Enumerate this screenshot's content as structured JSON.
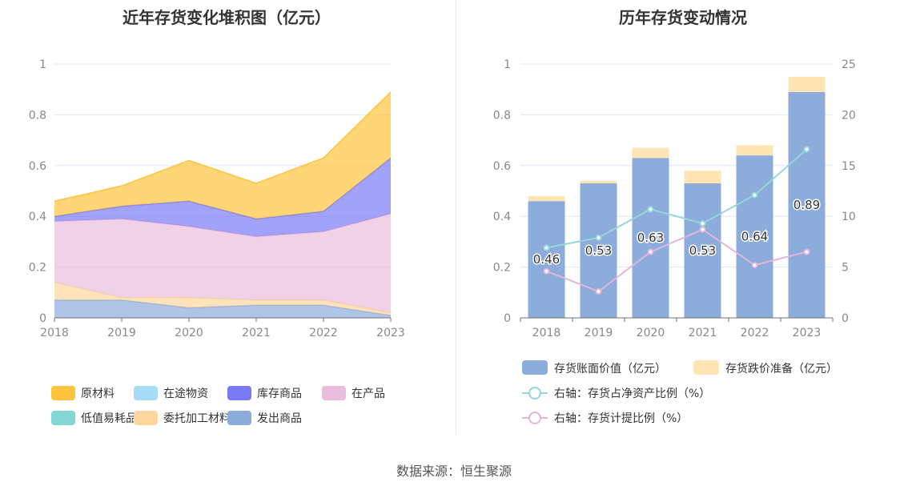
{
  "source": "数据来源：恒生聚源",
  "colors": {
    "raw": "#fdc43d",
    "transit": "#a6dcf5",
    "stock": "#7a7af5",
    "wip": "#ebbddc",
    "lowvalue": "#82d6d6",
    "entrusted": "#ffd79e",
    "shipped": "#8cacdc",
    "bar_book": "#8cacdc",
    "bar_reserve": "#ffe4b4",
    "line_ratio": "#94d7da",
    "line_provision": "#e3b5da"
  },
  "chart_data": [
    {
      "type": "area",
      "title": "近年存货变化堆积图（亿元）",
      "categories": [
        "2018",
        "2019",
        "2020",
        "2021",
        "2022",
        "2023"
      ],
      "ylim": [
        0,
        1
      ],
      "yticks": [
        "0",
        "0.2",
        "0.4",
        "0.6",
        "0.8",
        "1"
      ],
      "legend": [
        "原材料",
        "在途物资",
        "库存商品",
        "在产品",
        "低值易耗品",
        "委托加工材料",
        "发出商品"
      ],
      "series": [
        {
          "name": "发出商品",
          "values": [
            0.07,
            0.07,
            0.04,
            0.05,
            0.05,
            0.01
          ]
        },
        {
          "name": "委托加工材料",
          "values": [
            0.07,
            0.01,
            0.04,
            0.02,
            0.02,
            0.01
          ]
        },
        {
          "name": "在产品",
          "values": [
            0.24,
            0.31,
            0.28,
            0.25,
            0.27,
            0.39
          ]
        },
        {
          "name": "库存商品",
          "values": [
            0.02,
            0.05,
            0.1,
            0.07,
            0.08,
            0.22
          ]
        },
        {
          "name": "原材料",
          "values": [
            0.06,
            0.08,
            0.16,
            0.14,
            0.21,
            0.26
          ]
        },
        {
          "name": "在途物资",
          "values": [
            0,
            0,
            0,
            0,
            0,
            0
          ]
        },
        {
          "name": "低值易耗品",
          "values": [
            0,
            0,
            0,
            0,
            0,
            0
          ]
        }
      ]
    },
    {
      "type": "bar",
      "title": "历年存货变动情况",
      "categories": [
        "2018",
        "2019",
        "2020",
        "2021",
        "2022",
        "2023"
      ],
      "ylim": [
        0,
        1
      ],
      "yticks": [
        "0",
        "0.2",
        "0.4",
        "0.6",
        "0.8",
        "1"
      ],
      "y2lim": [
        0,
        25
      ],
      "y2ticks": [
        "0",
        "5",
        "10",
        "15",
        "20",
        "25"
      ],
      "series": [
        {
          "name": "存货账面价值（亿元）",
          "values": [
            0.46,
            0.53,
            0.63,
            0.53,
            0.64,
            0.89
          ],
          "labels": [
            "0.46",
            "0.53",
            "0.63",
            "0.53",
            "0.64",
            "0.89"
          ]
        },
        {
          "name": "存货跌价准备（亿元）",
          "values": [
            0.02,
            0.01,
            0.04,
            0.05,
            0.04,
            0.06
          ]
        },
        {
          "name": "右轴：存货占净资产比例（%）",
          "axis": "right",
          "values": [
            6.9,
            7.9,
            10.7,
            9.3,
            12.1,
            16.6
          ]
        },
        {
          "name": "右轴：存货计提比例（%）",
          "axis": "right",
          "values": [
            4.6,
            2.6,
            6.5,
            8.7,
            5.2,
            6.5
          ]
        }
      ]
    }
  ]
}
